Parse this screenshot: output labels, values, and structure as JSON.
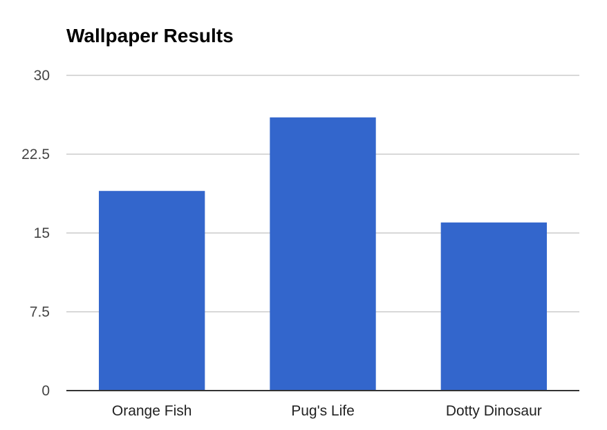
{
  "chart_data": {
    "type": "bar",
    "title": "Wallpaper Results",
    "categories": [
      "Orange Fish",
      "Pug's Life",
      "Dotty Dinosaur"
    ],
    "values": [
      19,
      26,
      16
    ],
    "ylim": [
      0,
      30
    ],
    "yticks": [
      "0",
      "7.5",
      "15",
      "22.5",
      "30"
    ],
    "ytick_values": [
      0,
      7.5,
      15,
      22.5,
      30
    ],
    "grid": true,
    "legend": "none",
    "colors": {
      "bar": "#3366cc",
      "grid": "#cccccc",
      "axis": "#333333"
    }
  }
}
